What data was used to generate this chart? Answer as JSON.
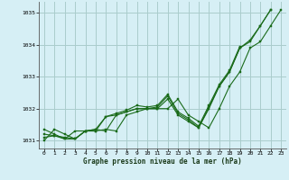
{
  "title": "Graphe pression niveau de la mer (hPa)",
  "bg_color": "#d6eff5",
  "grid_color": "#aacccc",
  "line_color": "#1a6b1a",
  "marker_color": "#1a6b1a",
  "xlim": [
    -0.5,
    23.5
  ],
  "ylim": [
    1030.75,
    1035.35
  ],
  "xticks": [
    0,
    1,
    2,
    3,
    4,
    5,
    6,
    7,
    8,
    9,
    10,
    11,
    12,
    13,
    14,
    15,
    16,
    17,
    18,
    19,
    20,
    21,
    22,
    23
  ],
  "yticks": [
    1031,
    1032,
    1033,
    1034,
    1035
  ],
  "series": [
    {
      "x": [
        0,
        1,
        2,
        3,
        4,
        5,
        6,
        7,
        8,
        9,
        10,
        11,
        12,
        13,
        14,
        15,
        16,
        17,
        18,
        19,
        20,
        21,
        22,
        23
      ],
      "y": [
        1031.0,
        1031.35,
        1031.2,
        1031.05,
        1031.3,
        1031.3,
        1031.35,
        1031.3,
        1031.8,
        1031.9,
        1032.0,
        1032.0,
        1032.0,
        1032.3,
        1031.8,
        1031.6,
        1031.4,
        1032.0,
        1032.7,
        1033.15,
        1033.9,
        1034.1,
        1034.6,
        1035.1
      ]
    },
    {
      "x": [
        0,
        1,
        2,
        3,
        4,
        5,
        6,
        7,
        8,
        9,
        10,
        11,
        12,
        13,
        14,
        15,
        16,
        17,
        18,
        19,
        20,
        21,
        22
      ],
      "y": [
        1031.35,
        1031.2,
        1031.05,
        1031.3,
        1031.3,
        1031.35,
        1031.3,
        1031.8,
        1031.9,
        1032.0,
        1032.0,
        1032.0,
        1032.3,
        1031.8,
        1031.6,
        1031.4,
        1032.0,
        1032.7,
        1033.15,
        1033.9,
        1034.1,
        1034.6,
        1035.1
      ]
    },
    {
      "x": [
        0,
        1,
        2,
        3,
        4,
        5,
        6,
        7,
        8,
        9,
        10,
        11,
        12,
        13,
        14,
        15,
        16,
        17,
        18,
        19,
        20,
        21,
        22
      ],
      "y": [
        1031.2,
        1031.15,
        1031.05,
        1031.05,
        1031.3,
        1031.3,
        1031.75,
        1031.8,
        1031.9,
        1032.0,
        1032.0,
        1032.05,
        1032.4,
        1031.85,
        1031.65,
        1031.4,
        1032.05,
        1032.7,
        1033.15,
        1033.9,
        1034.15,
        1034.6,
        1035.1
      ]
    },
    {
      "x": [
        0,
        1,
        2,
        3,
        4,
        5,
        6,
        7,
        8,
        9,
        10,
        11,
        12,
        13,
        14,
        15,
        16,
        17,
        18,
        19
      ],
      "y": [
        1031.1,
        1031.15,
        1031.1,
        1031.05,
        1031.3,
        1031.35,
        1031.75,
        1031.85,
        1031.95,
        1032.1,
        1032.05,
        1032.1,
        1032.45,
        1031.9,
        1031.7,
        1031.45,
        1032.1,
        1032.75,
        1033.2,
        1033.95
      ]
    }
  ]
}
